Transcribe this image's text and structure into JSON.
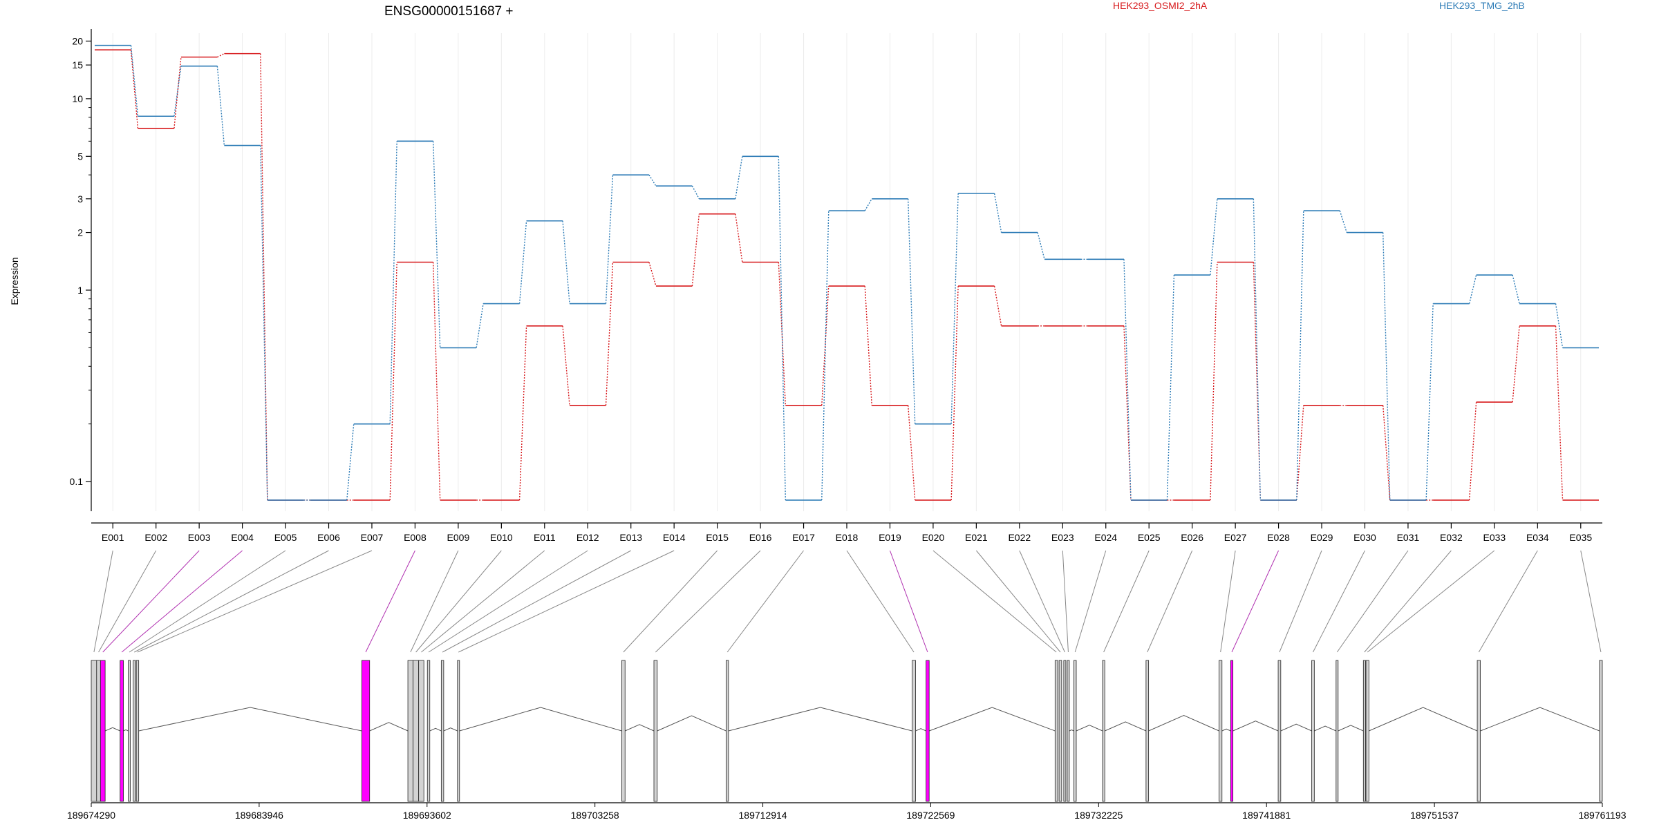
{
  "chart_data": {
    "type": "line",
    "title": "ENSG00000151687 +",
    "xlabel": "",
    "ylabel": "Expression",
    "yscale": "log",
    "ylim": [
      0.07,
      22
    ],
    "yticks": [
      {
        "value": 0.1,
        "label": "0.1"
      },
      {
        "value": 1,
        "label": "1"
      },
      {
        "value": 2,
        "label": "2"
      },
      {
        "value": 3,
        "label": "3"
      },
      {
        "value": 5,
        "label": "5"
      },
      {
        "value": 10,
        "label": "10"
      },
      {
        "value": 15,
        "label": "15"
      },
      {
        "value": 20,
        "label": "20"
      }
    ],
    "categories": [
      "E001",
      "E002",
      "E003",
      "E004",
      "E005",
      "E006",
      "E007",
      "E008",
      "E009",
      "E010",
      "E011",
      "E012",
      "E013",
      "E014",
      "E015",
      "E016",
      "E017",
      "E018",
      "E019",
      "E020",
      "E021",
      "E022",
      "E023",
      "E024",
      "E025",
      "E026",
      "E027",
      "E028",
      "E029",
      "E030",
      "E031",
      "E032",
      "E033",
      "E034",
      "E035"
    ],
    "series": [
      {
        "name": "HEK293_OSMI2_2hA",
        "color": "#d7191c",
        "values": [
          18,
          7,
          16.5,
          17.2,
          0.08,
          0.08,
          0.08,
          1.4,
          0.08,
          0.08,
          0.65,
          0.25,
          1.4,
          1.05,
          2.5,
          1.4,
          0.25,
          1.05,
          0.25,
          0.08,
          1.05,
          0.65,
          0.65,
          0.65,
          0.08,
          0.08,
          1.4,
          0.08,
          0.25,
          0.25,
          0.08,
          0.08,
          0.26,
          0.65,
          0.08
        ]
      },
      {
        "name": "HEK293_TMG_2hB",
        "color": "#2c7bb6",
        "values": [
          19,
          8.1,
          14.8,
          5.7,
          0.08,
          0.08,
          0.2,
          6,
          0.5,
          0.85,
          2.3,
          0.85,
          4,
          3.5,
          3,
          5,
          0.08,
          2.6,
          3,
          0.2,
          3.2,
          2,
          1.45,
          1.45,
          0.08,
          1.2,
          3,
          0.08,
          2.6,
          2,
          0.08,
          0.85,
          1.2,
          0.85,
          0.5
        ]
      }
    ],
    "gene_model": {
      "coordinate_ticks": [
        "189674290",
        "189683946",
        "189693602",
        "189703258",
        "189712914",
        "189722569",
        "189732225",
        "189741881",
        "189751537",
        "189761193"
      ],
      "range": [
        189674290,
        189761193
      ],
      "highlight_color": "#ff00ff",
      "exon_color": "#d3d3d3",
      "exons": [
        {
          "id": "E001",
          "start": 189674290,
          "end": 189674600,
          "highlight": false
        },
        {
          "id": "E002",
          "start": 189674600,
          "end": 189674820,
          "highlight": false
        },
        {
          "id": "E003",
          "start": 189674820,
          "end": 189675090,
          "highlight": true
        },
        {
          "id": "E004",
          "start": 189675950,
          "end": 189676140,
          "highlight": true
        },
        {
          "id": "E005",
          "start": 189676420,
          "end": 189676520,
          "highlight": false
        },
        {
          "id": "E006",
          "start": 189676700,
          "end": 189676830,
          "highlight": false
        },
        {
          "id": "E007",
          "start": 189676880,
          "end": 189677020,
          "highlight": false
        },
        {
          "id": "E008",
          "start": 189689850,
          "end": 189690300,
          "highlight": true
        },
        {
          "id": "E009",
          "start": 189692500,
          "end": 189692800,
          "highlight": false
        },
        {
          "id": "E010",
          "start": 189692800,
          "end": 189693120,
          "highlight": false
        },
        {
          "id": "E011",
          "start": 189693120,
          "end": 189693420,
          "highlight": false
        },
        {
          "id": "E012",
          "start": 189693620,
          "end": 189693760,
          "highlight": false
        },
        {
          "id": "E013",
          "start": 189694420,
          "end": 189694560,
          "highlight": false
        },
        {
          "id": "E014",
          "start": 189695350,
          "end": 189695470,
          "highlight": false
        },
        {
          "id": "E015",
          "start": 189704800,
          "end": 189704990,
          "highlight": false
        },
        {
          "id": "E016",
          "start": 189706650,
          "end": 189706840,
          "highlight": false
        },
        {
          "id": "E017",
          "start": 189710800,
          "end": 189710940,
          "highlight": false
        },
        {
          "id": "E018",
          "start": 189721500,
          "end": 189721700,
          "highlight": false
        },
        {
          "id": "E019",
          "start": 189722300,
          "end": 189722480,
          "highlight": true
        },
        {
          "id": "E020",
          "start": 189729720,
          "end": 189729870,
          "highlight": false
        },
        {
          "id": "E021",
          "start": 189729950,
          "end": 189730100,
          "highlight": false
        },
        {
          "id": "E022",
          "start": 189730220,
          "end": 189730340,
          "highlight": false
        },
        {
          "id": "E023",
          "start": 189730420,
          "end": 189730540,
          "highlight": false
        },
        {
          "id": "E024",
          "start": 189730800,
          "end": 189730940,
          "highlight": false
        },
        {
          "id": "E025",
          "start": 189732450,
          "end": 189732580,
          "highlight": false
        },
        {
          "id": "E026",
          "start": 189734950,
          "end": 189735100,
          "highlight": false
        },
        {
          "id": "E027",
          "start": 189739150,
          "end": 189739320,
          "highlight": false
        },
        {
          "id": "E028",
          "start": 189739820,
          "end": 189739950,
          "highlight": true
        },
        {
          "id": "E029",
          "start": 189742550,
          "end": 189742700,
          "highlight": false
        },
        {
          "id": "E030",
          "start": 189744480,
          "end": 189744630,
          "highlight": false
        },
        {
          "id": "E031",
          "start": 189745880,
          "end": 189745980,
          "highlight": false
        },
        {
          "id": "E032",
          "start": 189747450,
          "end": 189747550,
          "highlight": false
        },
        {
          "id": "E033",
          "start": 189747600,
          "end": 189747770,
          "highlight": false
        },
        {
          "id": "E034",
          "start": 189754000,
          "end": 189754180,
          "highlight": false
        },
        {
          "id": "E035",
          "start": 189761030,
          "end": 189761193,
          "highlight": false
        }
      ]
    }
  }
}
